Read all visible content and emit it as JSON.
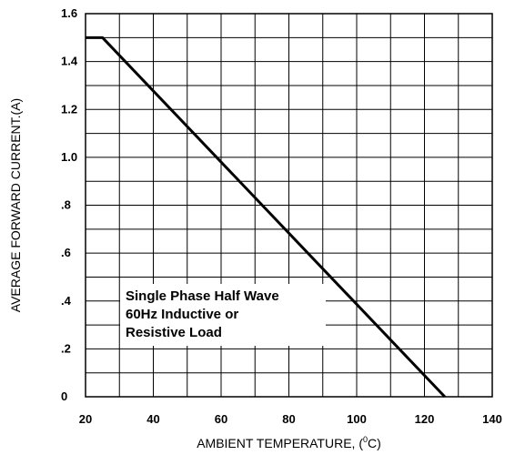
{
  "chart_data": {
    "type": "line",
    "xlabel": "AMBIENT TEMPERATURE, (°C)",
    "xlabel_prefix": "AMBIENT TEMPERATURE, (",
    "xlabel_degree": "0",
    "xlabel_suffix": "C)",
    "ylabel": "AVERAGE FORWARD CURRENT.(A)",
    "xlim": [
      20,
      140
    ],
    "ylim": [
      0,
      1.6
    ],
    "x_ticks": [
      20,
      40,
      60,
      80,
      100,
      120,
      140
    ],
    "x_tick_labels": [
      "20",
      "40",
      "60",
      "80",
      "100",
      "120",
      "140"
    ],
    "y_ticks": [
      0,
      0.2,
      0.4,
      0.6,
      0.8,
      1.0,
      1.2,
      1.4,
      1.6
    ],
    "y_tick_labels": [
      "0",
      ".2",
      ".4",
      ".6",
      ".8",
      "1.0",
      "1.2",
      "1.4",
      "1.6"
    ],
    "grid": true,
    "series": [
      {
        "x": [
          20,
          25,
          126
        ],
        "y": [
          1.5,
          1.5,
          0
        ]
      }
    ],
    "annotation": [
      "Single Phase Half Wave",
      "60Hz Inductive or",
      "Resistive Load"
    ],
    "line_color": "#000000"
  }
}
